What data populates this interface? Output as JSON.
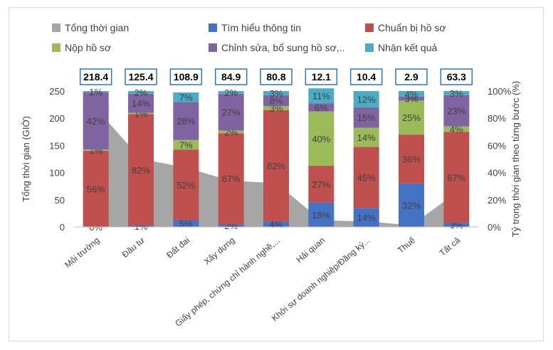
{
  "chart_data": {
    "type": "bar",
    "subtype": "stacked-percent-with-area",
    "categories": [
      "Môi trường",
      "Đầu tư",
      "Đất đai",
      "Xây dựng",
      "Giấy phép, chứng chỉ hành nghề,...",
      "Hải quan",
      "Khởi sự doanh nghiệp/Đăng ký...",
      "Thuế",
      "Tất cả"
    ],
    "total_label": "Tổng thời gian",
    "totals": [
      218.4,
      125.4,
      108.9,
      84.9,
      80.8,
      12.1,
      10.4,
      2.9,
      63.3
    ],
    "totals_display": [
      "218.4",
      "125.4",
      "108.9",
      "84.9",
      "80.8",
      "12.1",
      "10.4",
      "2.9",
      "63.3"
    ],
    "series": [
      {
        "name": "Tìm hiểu thông tin",
        "color": "#4472c4",
        "values": [
          0,
          1,
          5,
          2,
          4,
          18,
          14,
          32,
          3
        ]
      },
      {
        "name": "Chuẩn bị hồ sơ",
        "color": "#c0504d",
        "values": [
          56,
          82,
          52,
          67,
          82,
          27,
          45,
          36,
          67
        ]
      },
      {
        "name": "Nộp hồ sơ",
        "color": "#9bbb59",
        "values": [
          1,
          1,
          7,
          2,
          3,
          40,
          14,
          25,
          4
        ]
      },
      {
        "name": "Chỉnh sửa, bổ sung hồ sơ,..",
        "color": "#8064a2",
        "values": [
          42,
          14,
          28,
          27,
          8,
          6,
          15,
          3,
          23
        ]
      },
      {
        "name": "Nhận kết quả",
        "color": "#4bacc6",
        "values": [
          1,
          2,
          7,
          2,
          3,
          11,
          12,
          4,
          3
        ]
      }
    ],
    "segment_labels": [
      [
        "0%",
        "56%",
        "1%",
        "42%",
        "1%"
      ],
      [
        "1%",
        "82%",
        "1%",
        "14%",
        "2%"
      ],
      [
        "5%",
        "52%",
        "7%",
        "28%",
        "7%"
      ],
      [
        "2%",
        "67%",
        "2%",
        "27%",
        "2%"
      ],
      [
        "4%",
        "82%",
        "3%",
        "8%",
        "3%"
      ],
      [
        "18%",
        "27%",
        "40%",
        "6%",
        "11%"
      ],
      [
        "14%",
        "45%",
        "14%",
        "15%",
        "12%"
      ],
      [
        "32%",
        "36%",
        "25%",
        "3%",
        "4%"
      ],
      [
        "3%",
        "67%",
        "4%",
        "23%",
        "3%"
      ]
    ],
    "area_color": "#a6a6a6",
    "ylabel_left": "Tổng thời gian (GIỜ)",
    "ylabel_right": "Tỷ trọng thời gian theo từng bước (%)",
    "ylim_left": [
      0,
      250
    ],
    "ylim_right": [
      0,
      100
    ],
    "yticks_left": [
      "0",
      "50",
      "100",
      "150",
      "200",
      "250"
    ],
    "yticks_right": [
      "0%",
      "20%",
      "40%",
      "60%",
      "80%",
      "100%"
    ],
    "legend_position": "top",
    "grid": false
  }
}
